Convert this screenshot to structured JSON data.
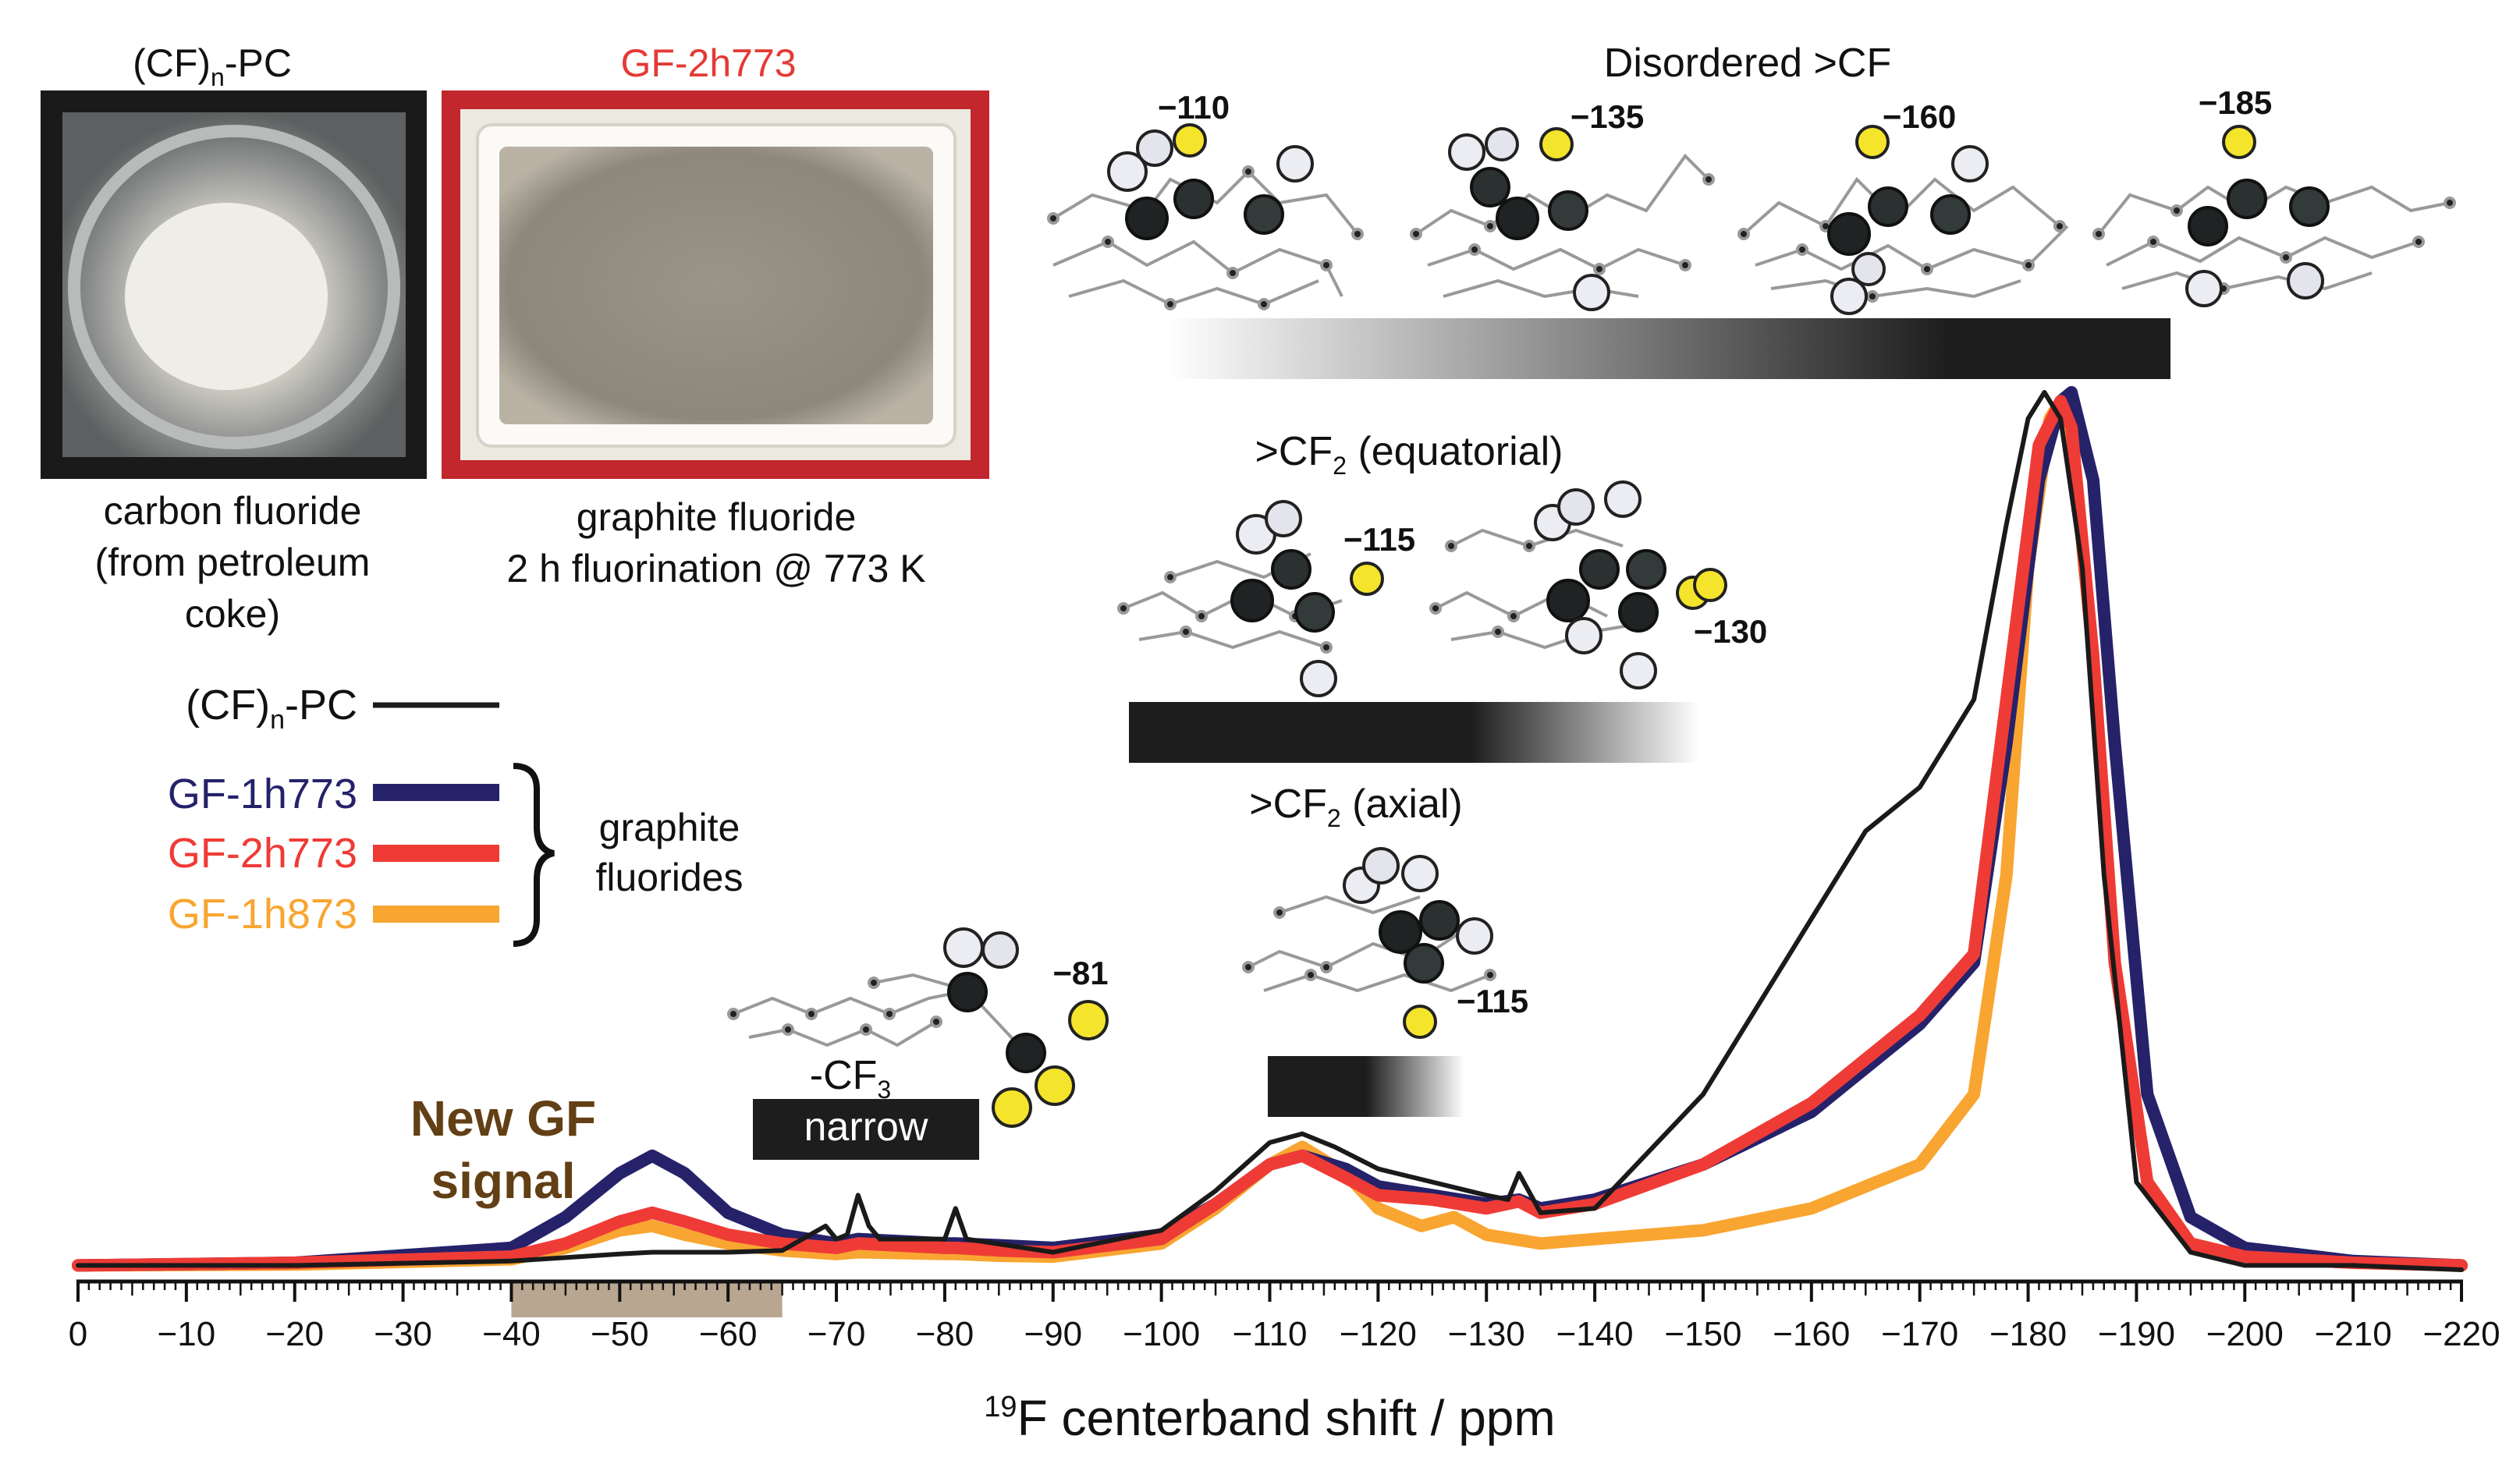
{
  "photos": [
    {
      "title": "(CF)",
      "title_sub": "n",
      "title_suffix": "-PC",
      "caption_lines": [
        "carbon fluoride",
        "(from petroleum",
        "coke)"
      ]
    },
    {
      "title": "GF-2h773",
      "caption_lines": [
        "graphite fluoride",
        "2 h fluorination @ 773 K"
      ]
    }
  ],
  "legend": {
    "items": [
      {
        "name": "(CF)",
        "name_sub": "n",
        "name_suffix": "-PC",
        "color": "#1a1a1a"
      },
      {
        "name": "GF-1h773",
        "color": "#25226a"
      },
      {
        "name": "GF-2h773",
        "color": "#ef3b36"
      },
      {
        "name": "GF-1h873",
        "color": "#f9a531"
      }
    ],
    "group_label_lines": [
      "graphite",
      "fluorides"
    ]
  },
  "annotations": {
    "new_gf_lines": [
      "New GF",
      "signal"
    ],
    "cf3_label": "-CF",
    "cf3_sub": "3",
    "narrow_label": "narrow",
    "cf3_shift": "−81",
    "cf2_ax_label": ">CF",
    "cf2_ax_sub": "2",
    "cf2_ax_suffix": " (axial)",
    "cf2_ax_shift": "−115",
    "cf2_eq_label": ">CF",
    "cf2_eq_sub": "2",
    "cf2_eq_suffix": " (equatorial)",
    "cf2_eq_shifts": [
      "−115",
      "−130"
    ],
    "cf_title": "Disordered >CF",
    "cf_shifts": [
      "−110",
      "−135",
      "−160",
      "−185"
    ]
  },
  "chart_data": {
    "type": "line",
    "xlabel_sup": "19",
    "xlabel": "F centerband shift / ppm",
    "xlim": [
      0,
      -220
    ],
    "ylim": [
      0,
      1
    ],
    "x_ticks": [
      0,
      -10,
      -20,
      -30,
      -40,
      -50,
      -60,
      -70,
      -80,
      -90,
      -100,
      -110,
      -120,
      -130,
      -140,
      -150,
      -160,
      -170,
      -180,
      -190,
      -200,
      -210,
      -220
    ],
    "x_tick_labels": [
      "0",
      "−10",
      "−20",
      "−30",
      "−40",
      "−50",
      "−60",
      "−70",
      "−80",
      "−90",
      "−100",
      "−110",
      "−120",
      "−130",
      "−140",
      "−150",
      "−160",
      "−170",
      "−180",
      "−190",
      "−200",
      "−210",
      "−220"
    ],
    "grid": false,
    "highlight_range": [
      -40,
      -65
    ],
    "series": [
      {
        "name": "(CF)n-PC",
        "color": "#1a1a1a",
        "x": [
          0,
          -20,
          -40,
          -50,
          -53,
          -60,
          -65,
          -69,
          -70,
          -71,
          -72,
          -73,
          -74,
          -80,
          -81,
          -82,
          -90,
          -100,
          -105,
          -110,
          -113,
          -116,
          -120,
          -125,
          -130,
          -132,
          -133,
          -135,
          -140,
          -150,
          -160,
          -165,
          -170,
          -175,
          -178,
          -180,
          -181.5,
          -183,
          -185,
          -187,
          -190,
          -195,
          -200,
          -210,
          -220
        ],
        "y": [
          0.005,
          0.005,
          0.01,
          0.018,
          0.02,
          0.02,
          0.022,
          0.05,
          0.035,
          0.04,
          0.085,
          0.05,
          0.035,
          0.035,
          0.07,
          0.035,
          0.02,
          0.045,
          0.09,
          0.145,
          0.155,
          0.14,
          0.115,
          0.1,
          0.085,
          0.08,
          0.11,
          0.065,
          0.07,
          0.2,
          0.4,
          0.5,
          0.55,
          0.65,
          0.85,
          0.97,
          1.0,
          0.97,
          0.8,
          0.45,
          0.1,
          0.02,
          0.005,
          0.005,
          0.0
        ]
      },
      {
        "name": "GF-1h773",
        "color": "#25226a",
        "x": [
          0,
          -20,
          -40,
          -45,
          -50,
          -53,
          -56,
          -60,
          -65,
          -70,
          -72,
          -80,
          -81,
          -85,
          -90,
          -100,
          -105,
          -110,
          -113,
          -117,
          -120,
          -125,
          -130,
          -133,
          -135,
          -140,
          -150,
          -160,
          -170,
          -175,
          -178,
          -181,
          -183,
          -184,
          -186,
          -188,
          -191,
          -195,
          -200,
          -210,
          -220
        ],
        "y": [
          0.005,
          0.008,
          0.025,
          0.06,
          0.11,
          0.13,
          0.11,
          0.065,
          0.04,
          0.03,
          0.035,
          0.03,
          0.03,
          0.028,
          0.025,
          0.04,
          0.075,
          0.12,
          0.13,
          0.115,
          0.095,
          0.085,
          0.075,
          0.08,
          0.07,
          0.08,
          0.12,
          0.18,
          0.28,
          0.35,
          0.6,
          0.9,
          0.99,
          1.0,
          0.9,
          0.6,
          0.2,
          0.06,
          0.025,
          0.01,
          0.005
        ]
      },
      {
        "name": "GF-2h773",
        "color": "#ef3b36",
        "x": [
          0,
          -20,
          -40,
          -45,
          -50,
          -53,
          -56,
          -60,
          -65,
          -70,
          -72,
          -80,
          -81,
          -85,
          -90,
          -100,
          -105,
          -110,
          -113,
          -117,
          -120,
          -125,
          -130,
          -133,
          -135,
          -140,
          -150,
          -160,
          -170,
          -175,
          -178,
          -181,
          -183,
          -184,
          -186,
          -188,
          -191,
          -195,
          -200,
          -210,
          -220
        ],
        "y": [
          0.005,
          0.008,
          0.015,
          0.03,
          0.055,
          0.065,
          0.055,
          0.04,
          0.03,
          0.025,
          0.03,
          0.025,
          0.025,
          0.022,
          0.02,
          0.035,
          0.075,
          0.12,
          0.13,
          0.105,
          0.085,
          0.08,
          0.07,
          0.078,
          0.065,
          0.075,
          0.12,
          0.19,
          0.29,
          0.36,
          0.65,
          0.94,
          0.99,
          0.96,
          0.7,
          0.35,
          0.1,
          0.03,
          0.015,
          0.008,
          0.005
        ]
      },
      {
        "name": "GF-1h873",
        "color": "#f9a531",
        "x": [
          0,
          -20,
          -40,
          -45,
          -50,
          -53,
          -56,
          -60,
          -65,
          -70,
          -72,
          -80,
          -81,
          -85,
          -90,
          -100,
          -105,
          -110,
          -113,
          -117,
          -120,
          -124,
          -127,
          -130,
          -135,
          -140,
          -150,
          -160,
          -170,
          -175,
          -178,
          -180,
          -182,
          -183,
          -184,
          -186,
          -188,
          -191,
          -195,
          -200,
          -210,
          -220
        ],
        "y": [
          0.005,
          0.006,
          0.012,
          0.025,
          0.045,
          0.05,
          0.04,
          0.03,
          0.022,
          0.018,
          0.02,
          0.018,
          0.018,
          0.016,
          0.015,
          0.03,
          0.07,
          0.12,
          0.14,
          0.11,
          0.07,
          0.05,
          0.06,
          0.04,
          0.03,
          0.035,
          0.045,
          0.07,
          0.12,
          0.2,
          0.45,
          0.8,
          0.97,
          0.99,
          0.95,
          0.7,
          0.35,
          0.1,
          0.03,
          0.015,
          0.008,
          0.005
        ]
      }
    ]
  }
}
